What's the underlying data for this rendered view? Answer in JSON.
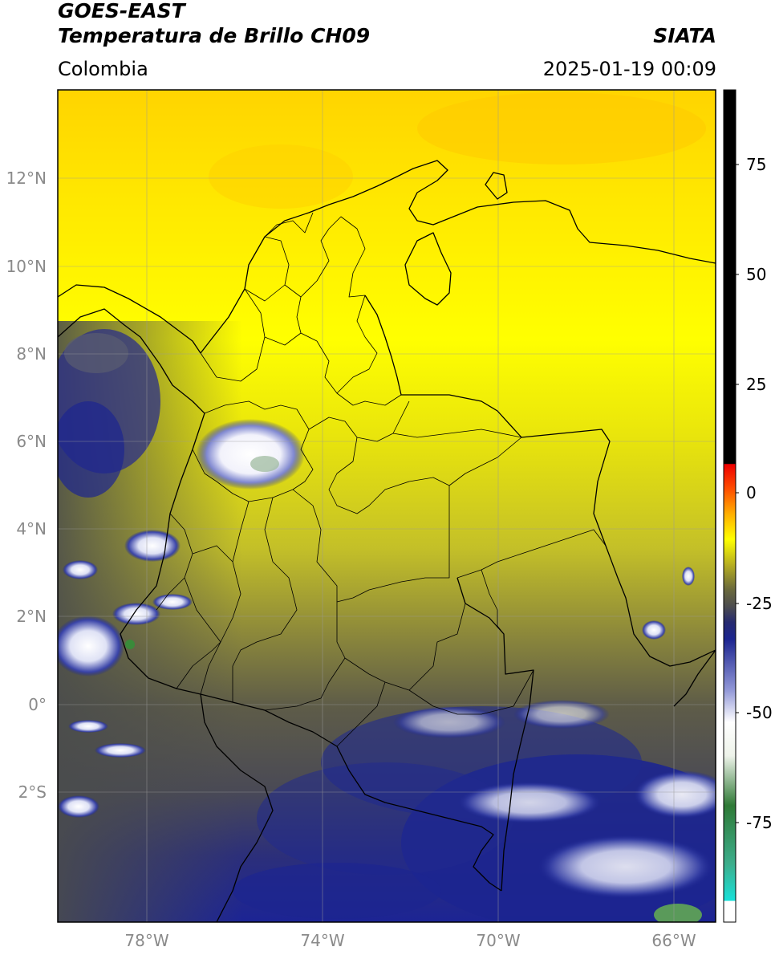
{
  "header": {
    "satellite": "GOES-EAST",
    "product": "Temperatura de Brillo CH09",
    "org": "SIATA",
    "region": "Colombia",
    "datetime": "2025-01-19 00:09"
  },
  "map": {
    "lat_ticks": [
      "12°N",
      "10°N",
      "8°N",
      "6°N",
      "4°N",
      "2°N",
      "0°",
      "2°S"
    ],
    "lon_ticks": [
      "78°W",
      "74°W",
      "70°W",
      "66°W"
    ],
    "gridlines": true
  },
  "colorbar": {
    "ticks": [
      "75",
      "50",
      "25",
      "0",
      "-25",
      "-50",
      "-75"
    ],
    "stops": [
      "#ffffff",
      "#18e0d8",
      "#3cae8c",
      "#2f7a36",
      "#eef3ea",
      "#ffffff",
      "#8f95d6",
      "#1c2590",
      "#262a70",
      "#4e4e4e",
      "#6b6a3c",
      "#b8b020",
      "#ffff00",
      "#ffb000",
      "#ff5000",
      "#ee0000",
      "#000000"
    ]
  }
}
